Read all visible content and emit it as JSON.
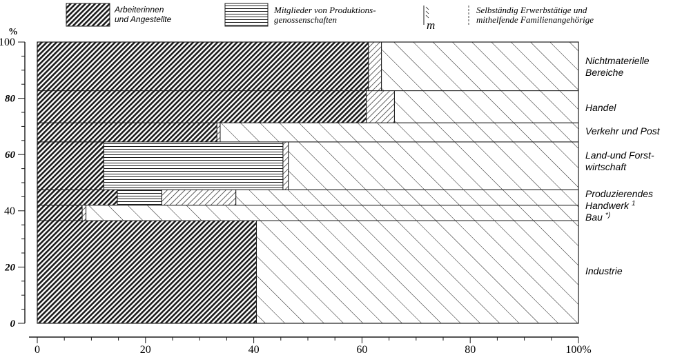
{
  "chart_data": {
    "type": "bar",
    "orientation": "horizontal-stacked-100",
    "ylabel": "%",
    "x_ticks": [
      "0",
      "20",
      "40",
      "60",
      "80",
      "100%"
    ],
    "y_ticks": [
      "0",
      "20",
      "40",
      "60",
      "80",
      "100"
    ],
    "xlim": [
      0,
      100
    ],
    "ylim": [
      0,
      100
    ],
    "series": [
      {
        "name": "Arbeiterinnen und Angestellte",
        "pattern": "dense-diagonal"
      },
      {
        "name": "Mitglieder von Produktionsgenossenschaften",
        "pattern": "horizontal-lines"
      },
      {
        "name": "Selbständig Erwerbstätige und mithelfende Familienangehörige",
        "pattern": "backslash-diagonal"
      }
    ],
    "legend_marker_text": "m",
    "categories": [
      {
        "name": "Industrie",
        "y0": 0,
        "y1": 36.5,
        "values": [
          40.5,
          0,
          0
        ]
      },
      {
        "name": "Bau",
        "footnote": "*)",
        "y0": 36.5,
        "y1": 42,
        "values": [
          8.3,
          0,
          0.7
        ]
      },
      {
        "name": "Produzierendes Handwerk",
        "footnote": "1",
        "y0": 42,
        "y1": 47.5,
        "values": [
          14.8,
          8.2,
          13.7
        ]
      },
      {
        "name": "Land-und Forst-wirtschaft",
        "y0": 47.5,
        "y1": 64.5,
        "values": [
          12.3,
          33.1,
          1.0
        ]
      },
      {
        "name": "Verkehr und Post",
        "y0": 64.5,
        "y1": 71.3,
        "values": [
          33.2,
          0,
          0.6
        ]
      },
      {
        "name": "Handel",
        "y0": 71.3,
        "y1": 82.7,
        "values": [
          60.8,
          0,
          5.2
        ]
      },
      {
        "name": "Nichtmaterielle Bereiche",
        "y0": 82.7,
        "y1": 100,
        "values": [
          61.2,
          0,
          2.4
        ]
      }
    ],
    "colors": {
      "ink": "#1a1a1a",
      "paper": "#ffffff"
    }
  }
}
